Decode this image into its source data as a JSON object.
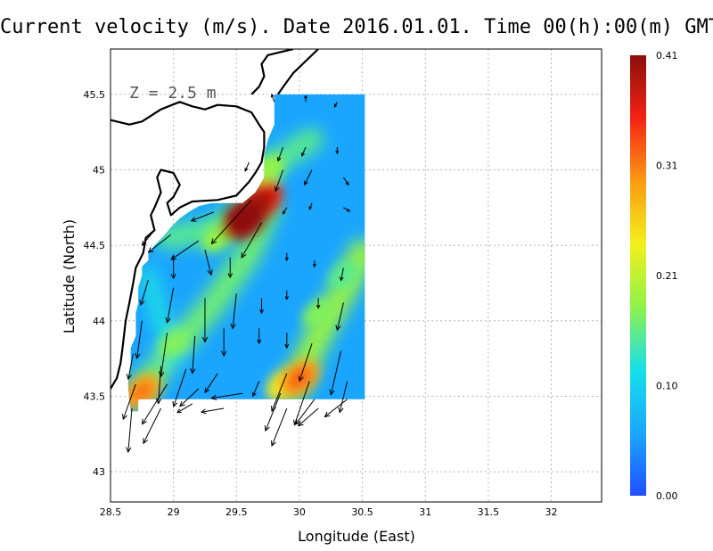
{
  "title": "Current velocity (m/s). Date 2016.01.01. Time 00(h):00(m) GMT",
  "chart_data": {
    "type": "heatmap",
    "title": "Current velocity (m/s). Date 2016.01.01. Time 00(h):00(m) GMT",
    "depth_label": "Z = 2.5 m",
    "xlabel": "Longitude (East)",
    "ylabel": "Latitude (North)",
    "xlim": [
      28.5,
      32.4
    ],
    "ylim": [
      42.8,
      45.8
    ],
    "x_ticks": [
      "28.5",
      "29",
      "29.5",
      "30",
      "30.5",
      "31",
      "31.5",
      "32"
    ],
    "y_ticks": [
      "43",
      "43.5",
      "44",
      "44.5",
      "45",
      "45.5"
    ],
    "grid": true,
    "colorbar": {
      "min": 0.0,
      "max": 0.41,
      "tick_labels": [
        "0.00",
        "0.10",
        "0.21",
        "0.31",
        "0.41"
      ],
      "colors": [
        "#1f4fff",
        "#1aa7ff",
        "#16e0ea",
        "#8ef24a",
        "#f3f01c",
        "#fb9a12",
        "#f42315",
        "#8b0f0a"
      ]
    },
    "field_hotspots": [
      {
        "lon": 29.57,
        "lat": 44.68,
        "speed": 0.4
      },
      {
        "lon": 29.69,
        "lat": 44.79,
        "speed": 0.36
      },
      {
        "lon": 30.0,
        "lat": 43.62,
        "speed": 0.29
      },
      {
        "lon": 28.75,
        "lat": 43.53,
        "speed": 0.28
      },
      {
        "lon": 29.88,
        "lat": 43.58,
        "speed": 0.24
      },
      {
        "lon": 29.75,
        "lat": 45.0,
        "speed": 0.18
      },
      {
        "lon": 29.35,
        "lat": 44.55,
        "speed": 0.18
      },
      {
        "lon": 30.15,
        "lat": 44.05,
        "speed": 0.17
      },
      {
        "lon": 29.0,
        "lat": 43.85,
        "speed": 0.17
      },
      {
        "lon": 30.35,
        "lat": 44.3,
        "speed": 0.15
      }
    ],
    "vectors": [
      {
        "lon": 29.8,
        "lat": 45.45,
        "u": -0.02,
        "v": 0.06
      },
      {
        "lon": 30.05,
        "lat": 45.45,
        "u": 0.0,
        "v": 0.05
      },
      {
        "lon": 30.3,
        "lat": 45.45,
        "u": -0.02,
        "v": -0.04
      },
      {
        "lon": 29.87,
        "lat": 45.15,
        "u": -0.04,
        "v": -0.11
      },
      {
        "lon": 30.05,
        "lat": 45.15,
        "u": -0.03,
        "v": -0.07
      },
      {
        "lon": 30.3,
        "lat": 45.15,
        "u": 0.0,
        "v": -0.05
      },
      {
        "lon": 29.6,
        "lat": 45.05,
        "u": -0.03,
        "v": -0.07
      },
      {
        "lon": 29.87,
        "lat": 45.0,
        "u": -0.06,
        "v": -0.17
      },
      {
        "lon": 30.1,
        "lat": 45.0,
        "u": -0.06,
        "v": -0.12
      },
      {
        "lon": 30.35,
        "lat": 44.95,
        "u": 0.04,
        "v": -0.06
      },
      {
        "lon": 29.62,
        "lat": 44.8,
        "u": -0.32,
        "v": -0.35
      },
      {
        "lon": 29.7,
        "lat": 44.65,
        "u": -0.16,
        "v": -0.28
      },
      {
        "lon": 29.9,
        "lat": 44.75,
        "u": -0.03,
        "v": -0.05
      },
      {
        "lon": 30.1,
        "lat": 44.78,
        "u": -0.02,
        "v": -0.05
      },
      {
        "lon": 30.35,
        "lat": 44.75,
        "u": 0.05,
        "v": -0.03
      },
      {
        "lon": 29.32,
        "lat": 44.72,
        "u": -0.18,
        "v": -0.07
      },
      {
        "lon": 29.2,
        "lat": 44.53,
        "u": -0.22,
        "v": -0.15
      },
      {
        "lon": 28.98,
        "lat": 44.57,
        "u": -0.18,
        "v": -0.14
      },
      {
        "lon": 28.85,
        "lat": 44.6,
        "u": -0.1,
        "v": -0.12
      },
      {
        "lon": 29.0,
        "lat": 44.43,
        "u": 0.0,
        "v": -0.18
      },
      {
        "lon": 29.25,
        "lat": 44.47,
        "u": 0.05,
        "v": -0.2
      },
      {
        "lon": 29.45,
        "lat": 44.42,
        "u": 0.0,
        "v": -0.16
      },
      {
        "lon": 29.9,
        "lat": 44.45,
        "u": 0.0,
        "v": -0.06
      },
      {
        "lon": 30.12,
        "lat": 44.4,
        "u": 0.0,
        "v": -0.05
      },
      {
        "lon": 30.35,
        "lat": 44.35,
        "u": -0.02,
        "v": -0.1
      },
      {
        "lon": 28.8,
        "lat": 44.27,
        "u": -0.06,
        "v": -0.2
      },
      {
        "lon": 29.0,
        "lat": 44.22,
        "u": -0.05,
        "v": -0.28
      },
      {
        "lon": 29.25,
        "lat": 44.15,
        "u": 0.0,
        "v": -0.35
      },
      {
        "lon": 29.5,
        "lat": 44.18,
        "u": -0.03,
        "v": -0.28
      },
      {
        "lon": 29.7,
        "lat": 44.15,
        "u": 0.0,
        "v": -0.12
      },
      {
        "lon": 29.9,
        "lat": 44.2,
        "u": 0.0,
        "v": -0.07
      },
      {
        "lon": 30.15,
        "lat": 44.15,
        "u": 0.0,
        "v": -0.08
      },
      {
        "lon": 30.35,
        "lat": 44.12,
        "u": -0.05,
        "v": -0.22
      },
      {
        "lon": 28.75,
        "lat": 44.0,
        "u": -0.04,
        "v": -0.3
      },
      {
        "lon": 28.95,
        "lat": 43.92,
        "u": -0.05,
        "v": -0.35
      },
      {
        "lon": 29.17,
        "lat": 43.9,
        "u": -0.02,
        "v": -0.3
      },
      {
        "lon": 29.4,
        "lat": 43.95,
        "u": 0.0,
        "v": -0.22
      },
      {
        "lon": 29.68,
        "lat": 43.95,
        "u": 0.0,
        "v": -0.12
      },
      {
        "lon": 29.9,
        "lat": 43.92,
        "u": 0.0,
        "v": -0.12
      },
      {
        "lon": 30.1,
        "lat": 43.85,
        "u": -0.1,
        "v": -0.3
      },
      {
        "lon": 30.33,
        "lat": 43.8,
        "u": -0.08,
        "v": -0.35
      },
      {
        "lon": 28.68,
        "lat": 43.78,
        "u": -0.04,
        "v": -0.2
      },
      {
        "lon": 28.9,
        "lat": 43.7,
        "u": -0.02,
        "v": -0.3
      },
      {
        "lon": 29.1,
        "lat": 43.68,
        "u": -0.1,
        "v": -0.3
      },
      {
        "lon": 29.35,
        "lat": 43.65,
        "u": -0.1,
        "v": -0.15
      },
      {
        "lon": 29.68,
        "lat": 43.6,
        "u": -0.05,
        "v": -0.12
      },
      {
        "lon": 29.9,
        "lat": 43.65,
        "u": -0.12,
        "v": -0.3
      },
      {
        "lon": 30.08,
        "lat": 43.6,
        "u": -0.12,
        "v": -0.35
      },
      {
        "lon": 30.38,
        "lat": 43.6,
        "u": -0.06,
        "v": -0.25
      },
      {
        "lon": 28.7,
        "lat": 43.58,
        "u": -0.1,
        "v": -0.28
      },
      {
        "lon": 28.95,
        "lat": 43.58,
        "u": -0.2,
        "v": -0.32
      },
      {
        "lon": 29.2,
        "lat": 43.55,
        "u": -0.15,
        "v": -0.14
      },
      {
        "lon": 29.55,
        "lat": 43.52,
        "u": -0.25,
        "v": -0.04
      },
      {
        "lon": 29.85,
        "lat": 43.52,
        "u": -0.12,
        "v": -0.3
      },
      {
        "lon": 30.12,
        "lat": 43.48,
        "u": -0.15,
        "v": -0.2
      },
      {
        "lon": 30.38,
        "lat": 43.48,
        "u": -0.18,
        "v": -0.14
      },
      {
        "lon": 28.67,
        "lat": 43.42,
        "u": -0.03,
        "v": -0.35
      },
      {
        "lon": 28.9,
        "lat": 43.42,
        "u": -0.14,
        "v": -0.28
      },
      {
        "lon": 29.15,
        "lat": 43.45,
        "u": -0.12,
        "v": -0.07
      },
      {
        "lon": 29.4,
        "lat": 43.42,
        "u": -0.18,
        "v": -0.03
      },
      {
        "lon": 29.9,
        "lat": 43.42,
        "u": -0.12,
        "v": -0.3
      },
      {
        "lon": 30.15,
        "lat": 43.42,
        "u": -0.16,
        "v": -0.14
      }
    ]
  }
}
